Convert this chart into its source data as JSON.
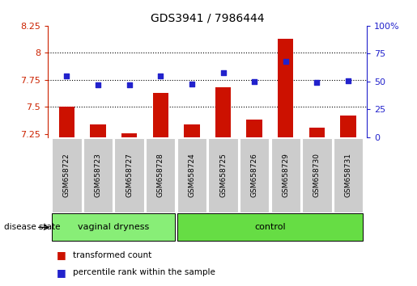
{
  "title": "GDS3941 / 7986444",
  "samples": [
    "GSM658722",
    "GSM658723",
    "GSM658727",
    "GSM658728",
    "GSM658724",
    "GSM658725",
    "GSM658726",
    "GSM658729",
    "GSM658730",
    "GSM658731"
  ],
  "transformed_count": [
    7.5,
    7.34,
    7.26,
    7.63,
    7.34,
    7.68,
    7.38,
    8.13,
    7.31,
    7.42
  ],
  "percentile_rank": [
    55,
    47,
    47,
    55,
    48,
    58,
    50,
    68,
    49,
    51
  ],
  "ylim_left": [
    7.22,
    8.25
  ],
  "ylim_right": [
    0,
    100
  ],
  "yticks_left": [
    7.25,
    7.5,
    7.75,
    8.0,
    8.25
  ],
  "yticks_right": [
    0,
    25,
    50,
    75,
    100
  ],
  "ytick_labels_left": [
    "7.25",
    "7.5",
    "7.75",
    "8",
    "8.25"
  ],
  "ytick_labels_right": [
    "0",
    "25",
    "50",
    "75",
    "100%"
  ],
  "hlines": [
    7.5,
    7.75,
    8.0
  ],
  "groups": {
    "vaginal dryness": [
      0,
      1,
      2,
      3
    ],
    "control": [
      4,
      5,
      6,
      7,
      8,
      9
    ]
  },
  "bar_color": "#cc1100",
  "dot_color": "#2222cc",
  "bar_width": 0.5,
  "left_yaxis_color": "#cc2200",
  "right_yaxis_color": "#2222cc",
  "bg_color": "#ffffff",
  "plot_bg": "#ffffff",
  "group_bg_vd": "#88ee77",
  "group_bg_ctrl": "#66dd44",
  "sample_bg": "#cccccc",
  "legend_red_label": "transformed count",
  "legend_blue_label": "percentile rank within the sample",
  "disease_state_label": "disease state",
  "group_label_vd": "vaginal dryness",
  "group_label_ctrl": "control"
}
